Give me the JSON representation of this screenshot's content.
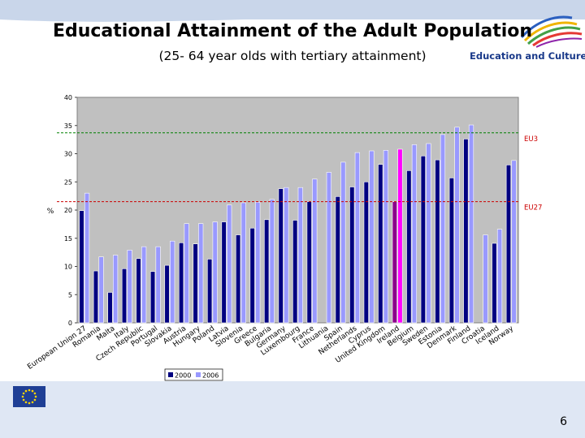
{
  "slide": {
    "title": "Educational Attainment of the Adult Population",
    "subtitle": "(25- 64 year olds with tertiary attainment)",
    "brand": "Education and Culture",
    "page_number": "6",
    "colors": {
      "band": "#c9d6ea",
      "brand_text": "#1a3a8a",
      "eu_blue": "#1f3f95",
      "eu_star": "#ffd500"
    }
  },
  "chart_data": {
    "type": "bar",
    "ylabel": "%",
    "ylim": [
      0,
      40
    ],
    "yticks": [
      0,
      5,
      10,
      15,
      20,
      25,
      30,
      35,
      40
    ],
    "grid": false,
    "legend_position": "bottom",
    "plot_background": "#c0c0c0",
    "categories": [
      "European Union 27",
      "Romania",
      "Malta",
      "Italy",
      "Czech Republic",
      "Portugal",
      "Slovakia",
      "Austria",
      "Hungary",
      "Poland",
      "Latvia",
      "Slovenia",
      "Greece",
      "Bulgaria",
      "Germany",
      "Luxembourg",
      "France",
      "Lithuania",
      "Spain",
      "Netherlands",
      "Cyprus",
      "United Kingdom",
      "Ireland",
      "Belgium",
      "Sweden",
      "Estonia",
      "Denmark",
      "Finland",
      "Croatia",
      "Iceland",
      "Norway"
    ],
    "series": [
      {
        "name": "2000",
        "color": "#000080",
        "values": [
          19.9,
          9.2,
          5.4,
          9.6,
          11.4,
          9.1,
          10.2,
          14.2,
          14.0,
          11.3,
          17.9,
          15.6,
          16.8,
          18.3,
          23.8,
          18.2,
          21.5,
          null,
          22.4,
          24.1,
          25.0,
          28.1,
          21.5,
          27.0,
          29.6,
          28.9,
          25.7,
          32.6,
          null,
          14.1,
          28.0
        ],
        "highlight": {
          "index": 22,
          "color": "#8b008b"
        }
      },
      {
        "name": "2006",
        "color": "#9999ff",
        "values": [
          23.0,
          11.7,
          12.0,
          12.9,
          13.5,
          13.5,
          14.5,
          17.6,
          17.6,
          17.9,
          20.9,
          21.3,
          21.4,
          21.9,
          24.0,
          24.0,
          25.5,
          26.7,
          28.5,
          30.2,
          30.5,
          30.6,
          30.8,
          31.6,
          31.8,
          33.4,
          34.7,
          35.1,
          15.6,
          16.6,
          28.8
        ],
        "highlight": {
          "index": 22,
          "color": "#ff00ff"
        }
      }
    ],
    "reference_lines": [
      {
        "label": "EU3",
        "value": 33.7,
        "color": "#008000",
        "label_color": "#cc0000"
      },
      {
        "label": "EU27",
        "value": 21.5,
        "color": "#cc0000",
        "label_color": "#cc0000"
      }
    ]
  }
}
